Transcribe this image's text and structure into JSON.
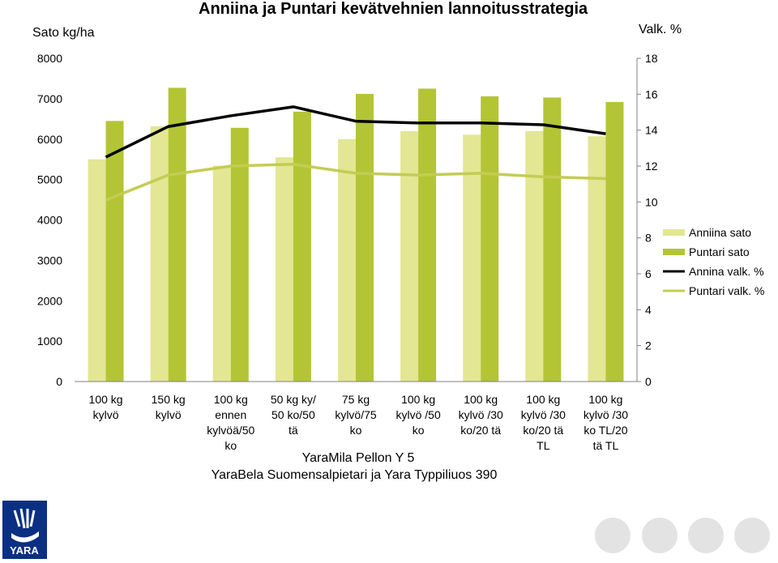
{
  "chart_data": {
    "type": "bar",
    "title": "Anniina ja Puntari kevätvehnien lannoitusstrategia",
    "ylabel": "Sato kg/ha",
    "y2label": "Valk. %",
    "xlabel_line1": "YaraMila Pellon Y 5",
    "xlabel_line2": "YaraBela Suomensalpietari ja Yara Typpiliuos 390",
    "ylim": [
      0,
      8000
    ],
    "y2lim": [
      0,
      18
    ],
    "yticks": [
      "0",
      "1000",
      "2000",
      "3000",
      "4000",
      "5000",
      "6000",
      "7000",
      "8000"
    ],
    "y2ticks": [
      "0",
      "2",
      "4",
      "6",
      "8",
      "10",
      "12",
      "14",
      "16",
      "18"
    ],
    "categories": [
      [
        "100 kg",
        "kylvö"
      ],
      [
        "150 kg",
        "kylvö"
      ],
      [
        "100 kg",
        "ennen",
        "kylvöä/50",
        "ko"
      ],
      [
        "50 kg ky/",
        "50 ko/50",
        "tä"
      ],
      [
        "75 kg",
        "kylvö/75",
        "ko"
      ],
      [
        "100 kg",
        "kylvö /50",
        "ko"
      ],
      [
        "100 kg",
        "kylvö /30",
        "ko/20 tä"
      ],
      [
        "100 kg",
        "kylvö /30",
        "ko/20 tä",
        "TL"
      ],
      [
        "100 kg",
        "kylvö /30",
        "ko TL/20",
        "tä TL"
      ]
    ],
    "bar_series": [
      {
        "name": "Anniina sato",
        "color": "#e3e693",
        "values": [
          5500,
          6320,
          5340,
          5550,
          6000,
          6200,
          6110,
          6200,
          6070
        ]
      },
      {
        "name": "Puntari sato",
        "color": "#b3c534",
        "values": [
          6450,
          7270,
          6280,
          6680,
          7120,
          7250,
          7060,
          7030,
          6920
        ]
      }
    ],
    "line_series": [
      {
        "name": "Annina valk. %",
        "color": "#000000",
        "axis": "right",
        "values": [
          12.5,
          14.2,
          14.8,
          15.3,
          14.5,
          14.4,
          14.4,
          14.3,
          13.8
        ]
      },
      {
        "name": "Puntari valk. %",
        "color": "#c4cc54",
        "axis": "right",
        "values": [
          10.1,
          11.5,
          12.0,
          12.1,
          11.6,
          11.5,
          11.6,
          11.4,
          11.3
        ]
      }
    ],
    "legend_position": "right",
    "grid": false
  },
  "logo": {
    "text": "YARA",
    "color": "#0a2f83"
  }
}
